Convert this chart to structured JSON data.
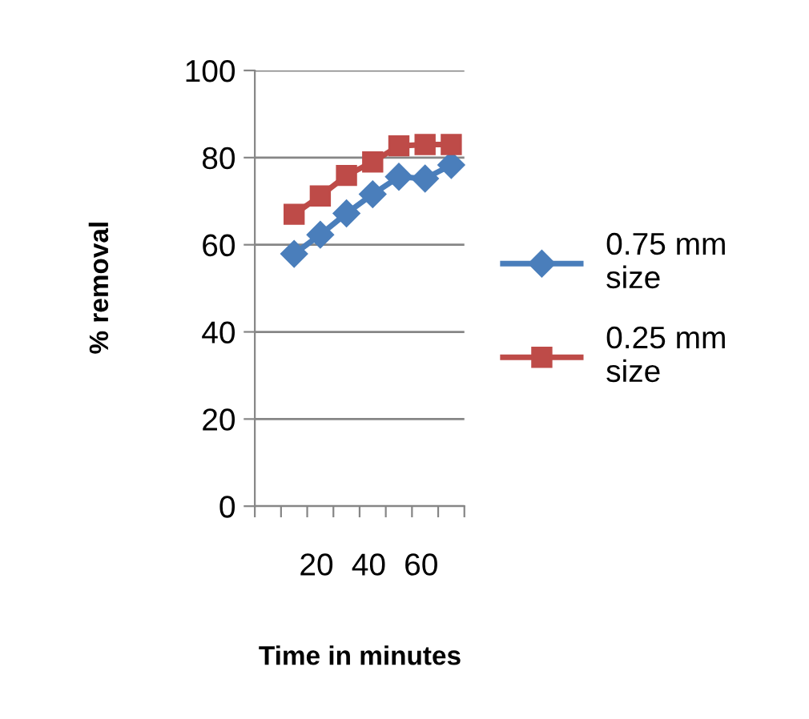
{
  "chart_data": {
    "type": "line",
    "xlabel": "Time in minutes",
    "ylabel": "% removal",
    "categories": [
      null,
      null,
      "20",
      null,
      "40",
      null,
      "60",
      null
    ],
    "series": [
      {
        "name": "0.75 mm size",
        "color": "#4a7ebb",
        "marker": "diamond",
        "values": [
          null,
          57.9,
          62.3,
          67.2,
          71.6,
          75.6,
          75.2,
          78.3
        ]
      },
      {
        "name": "0.25 mm size",
        "color": "#be4b48",
        "marker": "square",
        "values": [
          null,
          67,
          71.2,
          75.9,
          79,
          82.7,
          83,
          83
        ]
      }
    ],
    "ylim": [
      0,
      100
    ],
    "yticks": [
      0,
      20,
      40,
      60,
      80,
      100
    ],
    "grid": "y",
    "legend": "right"
  }
}
